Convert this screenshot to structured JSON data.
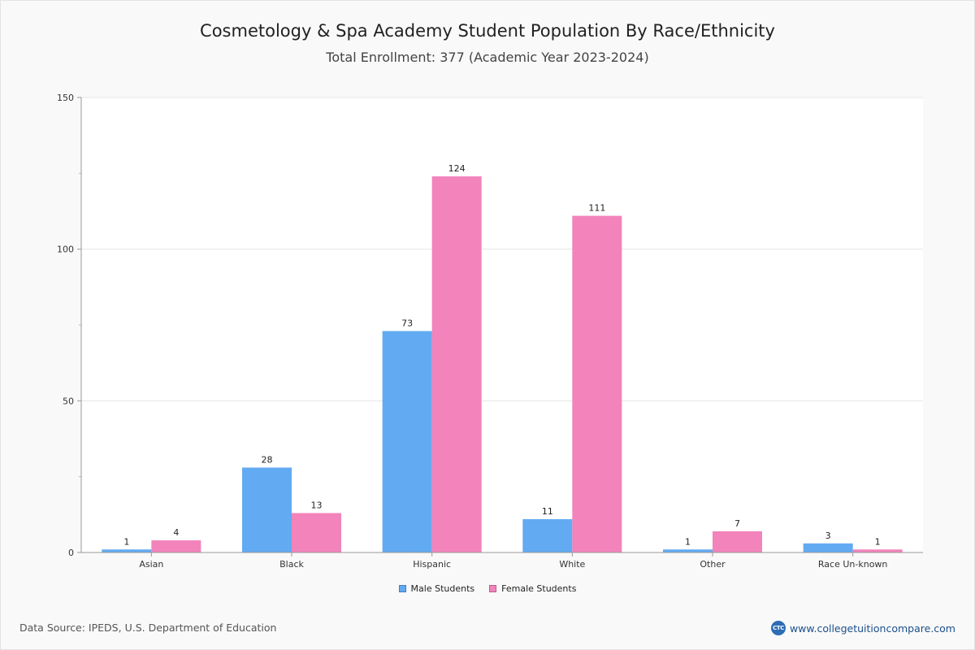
{
  "chart_data": {
    "type": "bar",
    "title": "Cosmetology & Spa Academy Student Population By Race/Ethnicity",
    "subtitle": "Total Enrollment: 377 (Academic Year 2023-2024)",
    "categories": [
      "Asian",
      "Black",
      "Hispanic",
      "White",
      "Other",
      "Race Un-known"
    ],
    "series": [
      {
        "name": "Male Students",
        "color": "#62aaf2",
        "values": [
          1,
          28,
          73,
          11,
          1,
          3
        ]
      },
      {
        "name": "Female Students",
        "color": "#f283bb",
        "values": [
          4,
          13,
          124,
          111,
          7,
          1
        ]
      }
    ],
    "ylim": [
      0,
      150
    ],
    "yticks": [
      0,
      50,
      100,
      150
    ],
    "xlabel": "",
    "ylabel": "",
    "grid": true,
    "legend": "bottom-center"
  },
  "footer": {
    "source": "Data Source: IPEDS, U.S. Department of Education",
    "brand_logo_text": "CTC",
    "brand_url": "www.collegetuitioncompare.com"
  }
}
